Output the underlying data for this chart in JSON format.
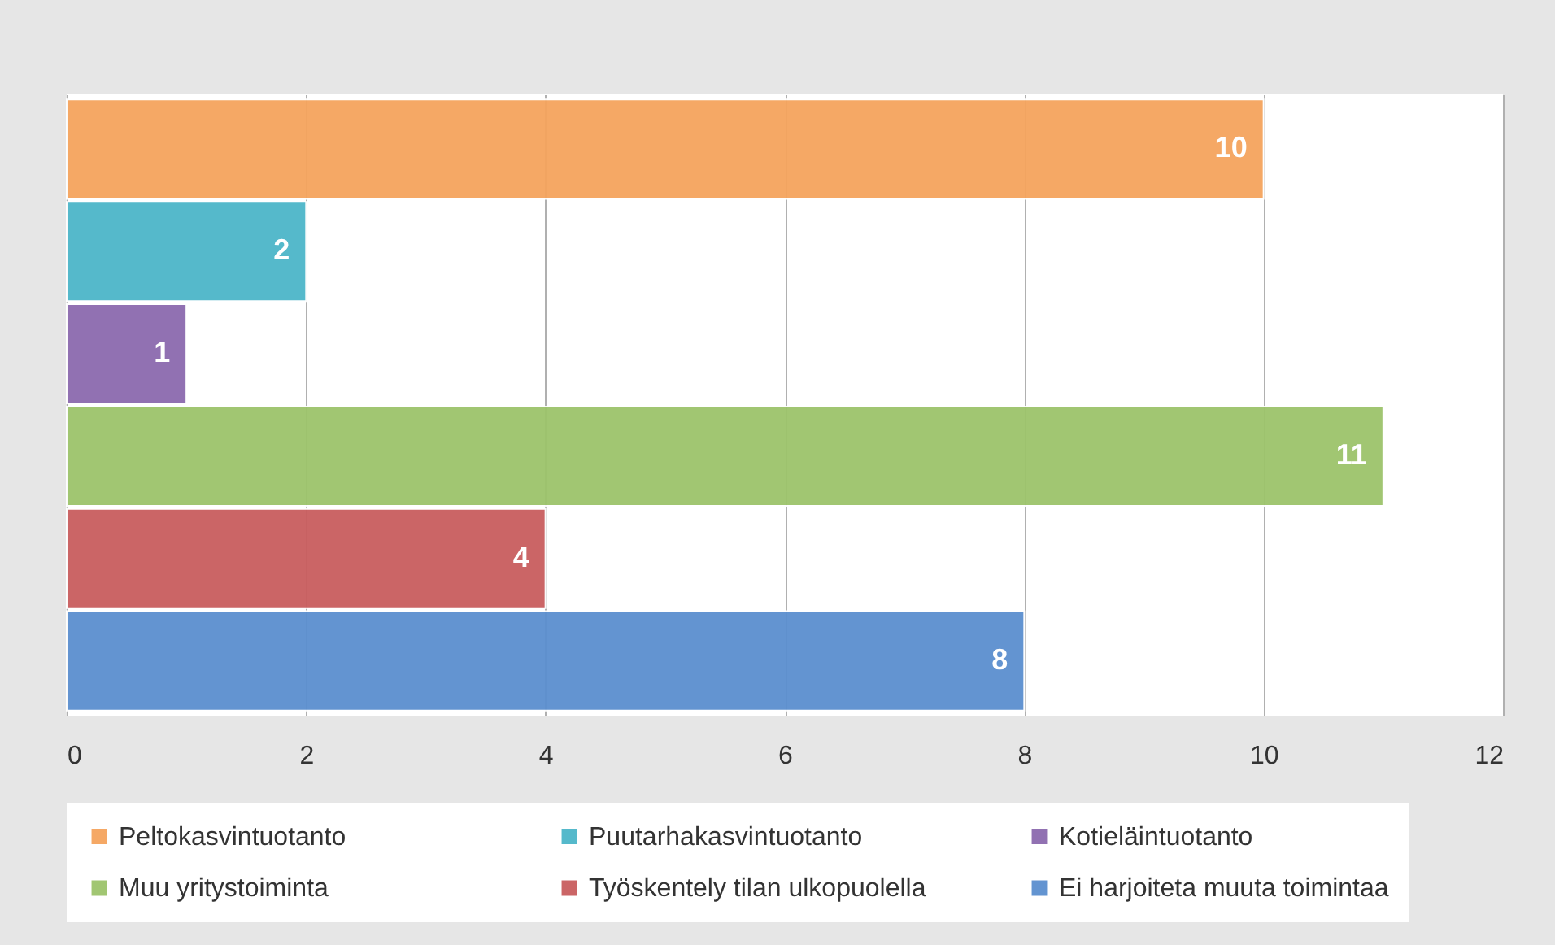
{
  "chart_data": {
    "type": "bar",
    "orientation": "horizontal",
    "categories": [
      null,
      null,
      null,
      null,
      null,
      null
    ],
    "series": [
      {
        "name": "Peltokasvintuotanto",
        "color": "#f5a45d",
        "values": [
          10,
          null,
          null,
          null,
          null,
          null
        ]
      },
      {
        "name": "Puutarhakasvintuotanto",
        "color": "#4cb6c9",
        "values": [
          null,
          2,
          null,
          null,
          null,
          null
        ]
      },
      {
        "name": "Kotieläintuotanto",
        "color": "#8c6aae",
        "values": [
          null,
          null,
          1,
          null,
          null,
          null
        ]
      },
      {
        "name": "Muu yritystoiminta",
        "color": "#9dc36b",
        "values": [
          null,
          null,
          null,
          11,
          null,
          null
        ]
      },
      {
        "name": "Työskentely tilan ulkopuolella",
        "color": "#c95d5e",
        "values": [
          null,
          null,
          null,
          null,
          4,
          null
        ]
      },
      {
        "name": "Ei harjoiteta muuta toimintaa",
        "color": "#5b8fcf",
        "values": [
          null,
          null,
          null,
          null,
          null,
          8
        ]
      }
    ],
    "xlim": [
      0,
      12
    ],
    "xticks": [
      0,
      2,
      4,
      6,
      8,
      10,
      12
    ],
    "grid": "x",
    "legend": "bottom",
    "data_labels": true
  }
}
